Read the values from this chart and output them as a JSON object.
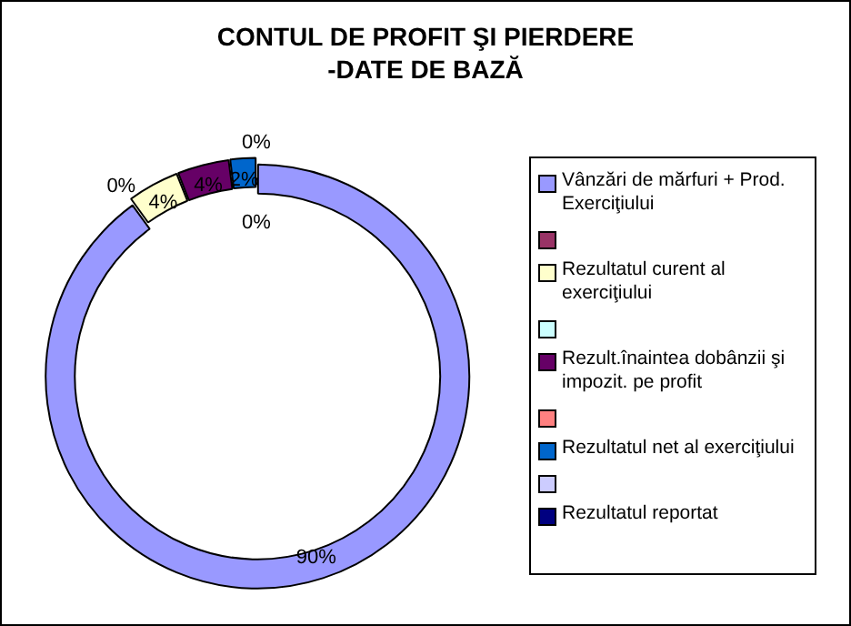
{
  "chart_data": {
    "type": "donut",
    "title": "CONTUL DE PROFIT ŞI PIERDERE\n-DATE DE BAZĂ",
    "categories": [
      "Vânzări de mărfuri + Prod. Exerciţiului",
      null,
      "Rezultatul curent al exerciţiului",
      null,
      "Rezult.înaintea dobânzii şi impozit. pe profit",
      null,
      "Rezultatul net al exerciţiului",
      null,
      "Rezultatul reportat"
    ],
    "values": [
      90,
      0,
      4,
      0,
      4,
      0,
      2,
      0,
      0
    ],
    "value_labels": [
      "90%",
      "0%",
      "4%",
      null,
      "4%",
      null,
      "2%",
      "0%",
      "0%"
    ],
    "colors": [
      "#9999ff",
      "#993366",
      "#ffffcc",
      "#ccffff",
      "#660066",
      "#ff8080",
      "#0066cc",
      "#ccccff",
      "#000080"
    ],
    "legend": "right"
  }
}
